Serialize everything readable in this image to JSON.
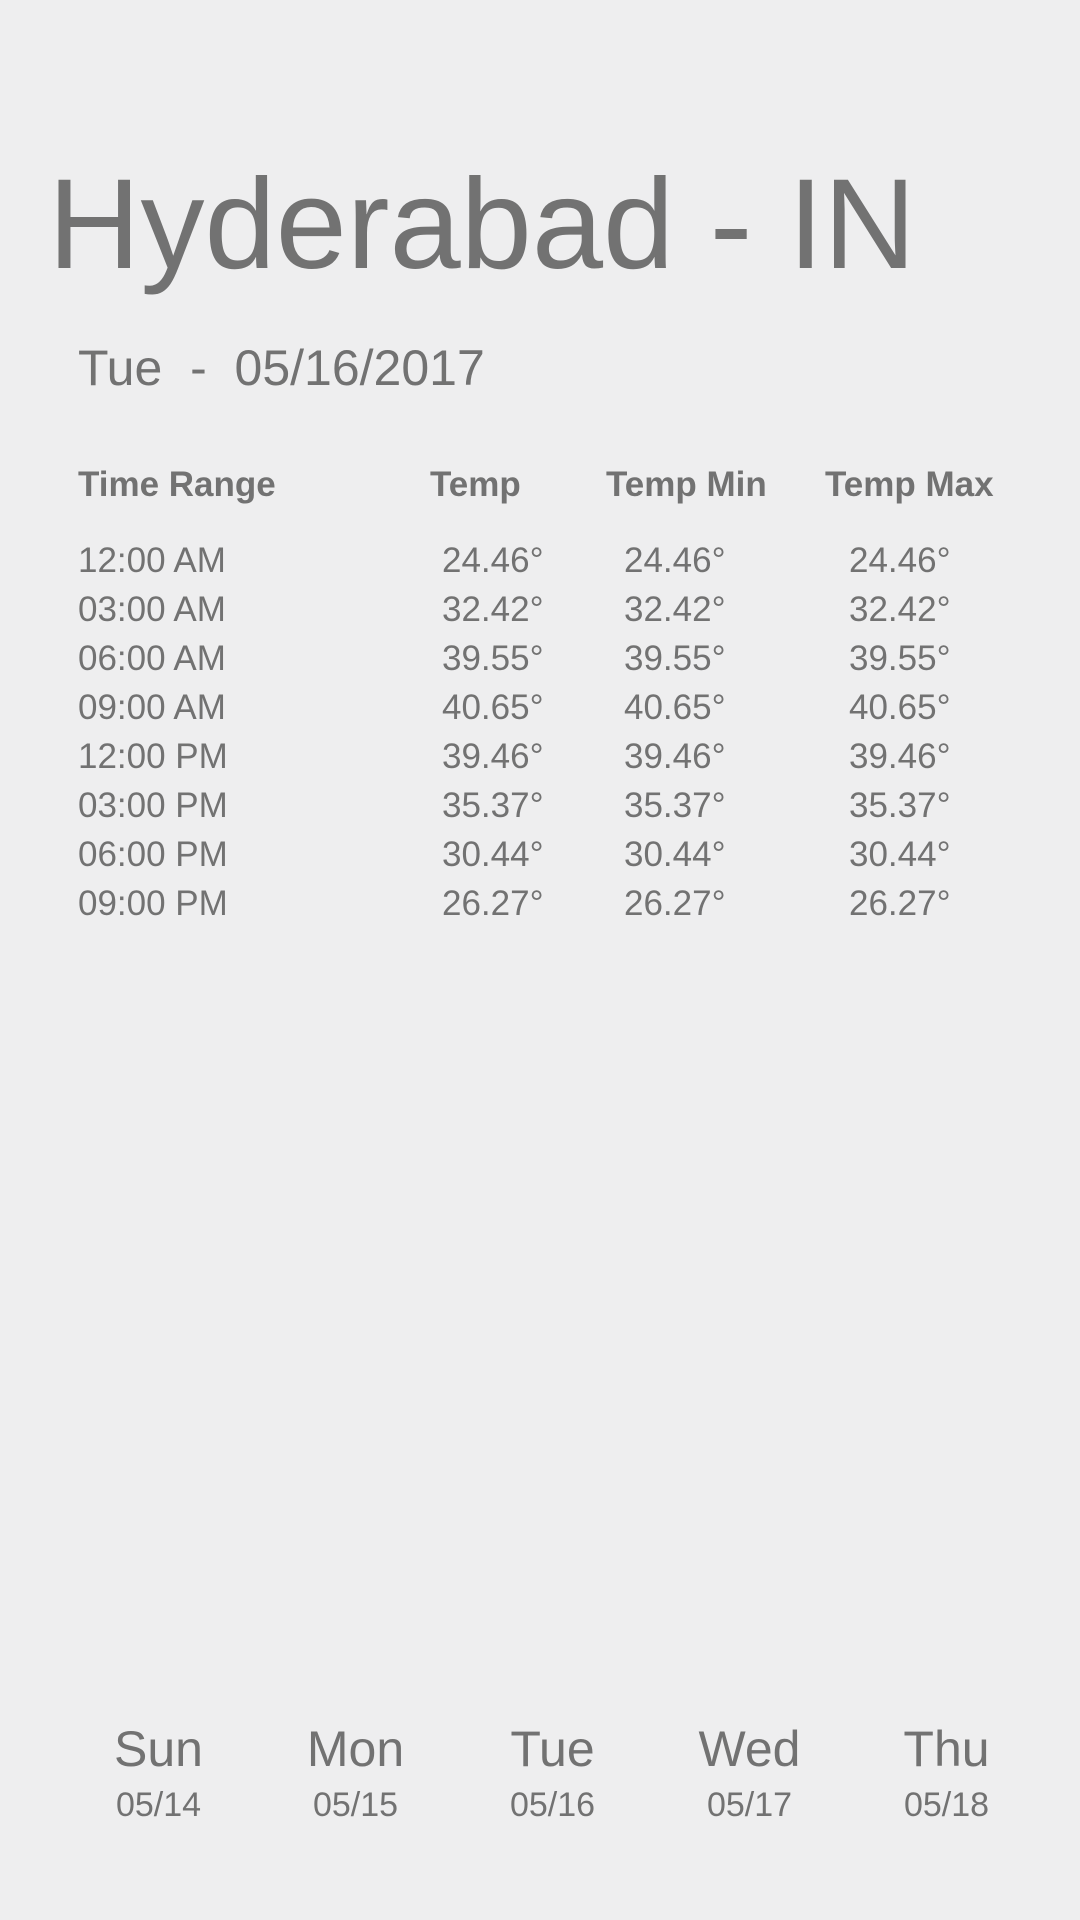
{
  "header": {
    "city": "Hyderabad - IN",
    "date_line": "Tue  -  05/16/2017"
  },
  "table": {
    "columns": [
      "Time Range",
      "Temp",
      "Temp Min",
      "Temp Max"
    ],
    "rows": [
      {
        "time": "12:00 AM",
        "temp": "24.46°",
        "min": "24.46°",
        "max": "24.46°"
      },
      {
        "time": "03:00 AM",
        "temp": "32.42°",
        "min": "32.42°",
        "max": "32.42°"
      },
      {
        "time": "06:00 AM",
        "temp": "39.55°",
        "min": "39.55°",
        "max": "39.55°"
      },
      {
        "time": "09:00 AM",
        "temp": "40.65°",
        "min": "40.65°",
        "max": "40.65°"
      },
      {
        "time": "12:00 PM",
        "temp": "39.46°",
        "min": "39.46°",
        "max": "39.46°"
      },
      {
        "time": "03:00 PM",
        "temp": "35.37°",
        "min": "35.37°",
        "max": "35.37°"
      },
      {
        "time": "06:00 PM",
        "temp": "30.44°",
        "min": "30.44°",
        "max": "30.44°"
      },
      {
        "time": "09:00 PM",
        "temp": "26.27°",
        "min": "26.27°",
        "max": "26.27°"
      }
    ]
  },
  "days": [
    {
      "name": "Sun",
      "date": "05/14"
    },
    {
      "name": "Mon",
      "date": "05/15"
    },
    {
      "name": "Tue",
      "date": "05/16"
    },
    {
      "name": "Wed",
      "date": "05/17"
    },
    {
      "name": "Thu",
      "date": "05/18"
    }
  ]
}
